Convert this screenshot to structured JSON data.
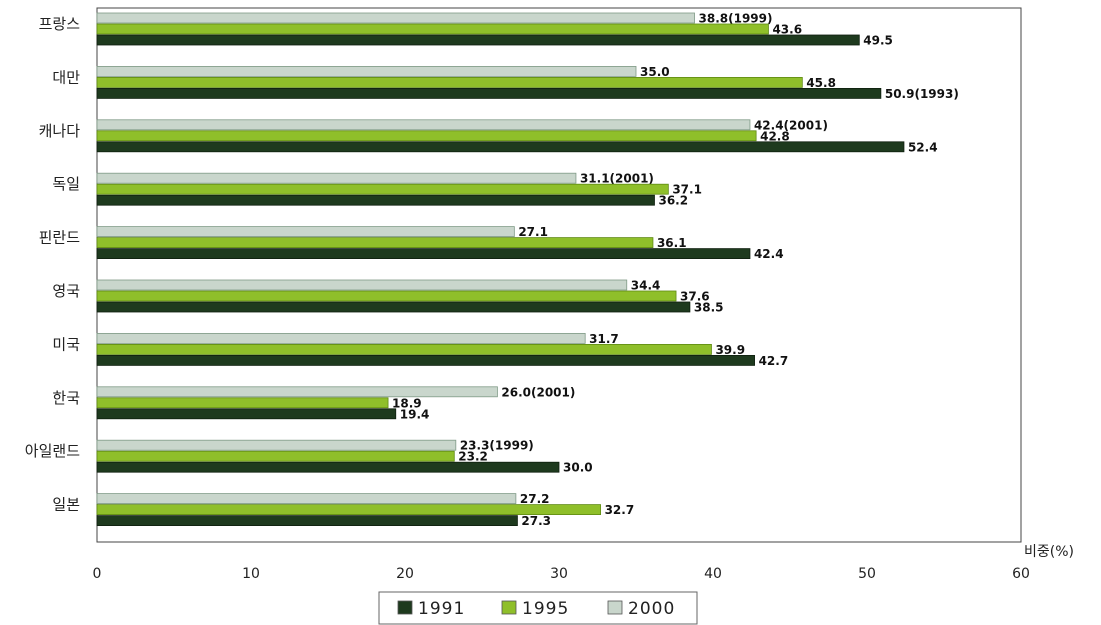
{
  "chart_data": {
    "type": "bar",
    "orientation": "horizontal",
    "categories": [
      "프랑스",
      "대만",
      "캐나다",
      "독일",
      "핀란드",
      "영국",
      "미국",
      "한국",
      "아일랜드",
      "일본"
    ],
    "series": [
      {
        "name": "2000",
        "color": "#c9d6cc",
        "values": [
          38.8,
          35.0,
          42.4,
          31.1,
          27.1,
          34.4,
          31.7,
          26.0,
          23.3,
          27.2
        ],
        "labels": [
          "38.8(1999)",
          "35.0",
          "42.4(2001)",
          "31.1(2001)",
          "27.1",
          "34.4",
          "31.7",
          "26.0(2001)",
          "23.3(1999)",
          "27.2"
        ]
      },
      {
        "name": "1995",
        "color": "#8fbf2a",
        "values": [
          43.6,
          45.8,
          42.8,
          37.1,
          36.1,
          37.6,
          39.9,
          18.9,
          23.2,
          32.7
        ],
        "labels": [
          "43.6",
          "45.8",
          "42.8",
          "37.1",
          "36.1",
          "37.6",
          "39.9",
          "18.9",
          "23.2",
          "32.7"
        ]
      },
      {
        "name": "1991",
        "color": "#1e3a1e",
        "values": [
          49.5,
          50.9,
          52.4,
          36.2,
          42.4,
          38.5,
          42.7,
          19.4,
          30.0,
          27.3
        ],
        "labels": [
          "49.5",
          "50.9(1993)",
          "52.4",
          "36.2",
          "42.4",
          "38.5",
          "42.7",
          "19.4",
          "30.0",
          "27.3"
        ]
      }
    ],
    "xlim": [
      0,
      60
    ],
    "xticks": [
      "0",
      "10",
      "20",
      "30",
      "40",
      "50",
      "60"
    ],
    "xlabel": "비중(%)",
    "legend": {
      "placement": "bottom-center",
      "order": [
        "1991",
        "1995",
        "2000"
      ]
    },
    "grid": false
  }
}
